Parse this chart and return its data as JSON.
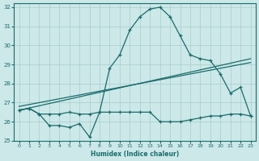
{
  "xlabel": "Humidex (Indice chaleur)",
  "bg_color": "#cce8e8",
  "grid_color": "#aacccc",
  "line_color": "#1a6b6b",
  "xlim": [
    -0.5,
    23.5
  ],
  "ylim": [
    25,
    32.2
  ],
  "xticks": [
    0,
    1,
    2,
    3,
    4,
    5,
    6,
    7,
    8,
    9,
    10,
    11,
    12,
    13,
    14,
    15,
    16,
    17,
    18,
    19,
    20,
    21,
    22,
    23
  ],
  "yticks": [
    25,
    26,
    27,
    28,
    29,
    30,
    31,
    32
  ],
  "line_peak_x": [
    0,
    1,
    2,
    3,
    4,
    5,
    6,
    7,
    8,
    9,
    10,
    11,
    12,
    13,
    14,
    15,
    16,
    17,
    18,
    19,
    20,
    21,
    22,
    23
  ],
  "line_peak_y": [
    26.6,
    26.7,
    26.4,
    25.8,
    25.8,
    25.7,
    25.9,
    25.2,
    26.5,
    28.8,
    29.5,
    30.8,
    31.5,
    31.9,
    32.0,
    31.5,
    30.5,
    29.5,
    29.3,
    29.2,
    28.5,
    27.5,
    27.8,
    26.3
  ],
  "line_flat_x": [
    0,
    1,
    2,
    3,
    4,
    5,
    6,
    7,
    8,
    9,
    10,
    11,
    12,
    13,
    14,
    15,
    16,
    17,
    18,
    19,
    20,
    21,
    22,
    23
  ],
  "line_flat_y": [
    26.6,
    26.7,
    26.4,
    26.4,
    26.4,
    26.5,
    26.4,
    26.4,
    26.5,
    26.5,
    26.5,
    26.5,
    26.5,
    26.5,
    26.0,
    26.0,
    26.0,
    26.1,
    26.2,
    26.3,
    26.3,
    26.4,
    26.4,
    26.3
  ],
  "line_trend_x": [
    0,
    23
  ],
  "line_trend_y": [
    26.6,
    29.3
  ],
  "line_trend2_x": [
    0,
    23
  ],
  "line_trend2_y": [
    26.8,
    29.1
  ]
}
